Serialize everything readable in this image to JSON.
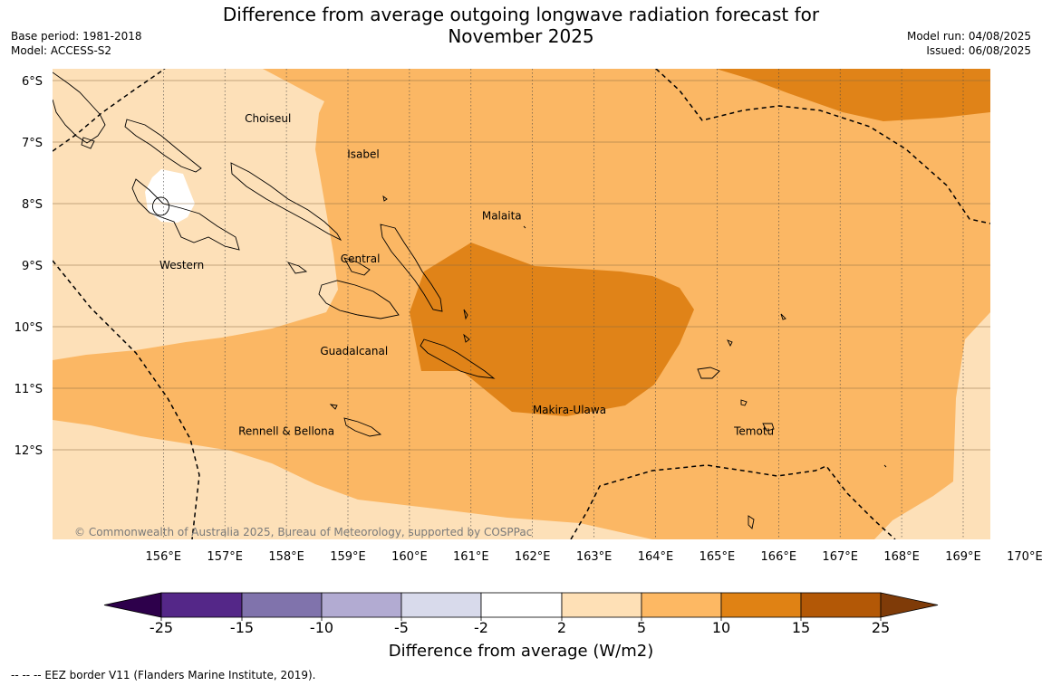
{
  "header": {
    "title_line1": "Difference from average outgoing longwave radiation forecast for",
    "title_line2": "November 2025",
    "base_period": "Base period: 1981-2018",
    "model": "Model: ACCESS-S2",
    "model_run": "Model run: 04/08/2025",
    "issued": "Issued: 06/08/2025"
  },
  "map": {
    "copyright": "© Commonwealth of Australia 2025, Bureau of Meteorology, supported by COSPPac",
    "lat_labels": [
      "6°S",
      "7°S",
      "8°S",
      "9°S",
      "10°S",
      "11°S",
      "12°S"
    ],
    "lon_labels": [
      "156°E",
      "157°E",
      "158°E",
      "159°E",
      "160°E",
      "161°E",
      "162°E",
      "163°E",
      "164°E",
      "165°E",
      "166°E",
      "167°E",
      "168°E",
      "169°E",
      "170°E"
    ],
    "places": [
      {
        "name": "Choiseul",
        "lon": 157.7,
        "lat": -6.62
      },
      {
        "name": "Isabel",
        "lon": 159.25,
        "lat": -7.2
      },
      {
        "name": "Malaita",
        "lon": 161.5,
        "lat": -8.2
      },
      {
        "name": "Western",
        "lon": 156.3,
        "lat": -9.0
      },
      {
        "name": "Central",
        "lon": 159.2,
        "lat": -8.9
      },
      {
        "name": "Guadalcanal",
        "lon": 159.1,
        "lat": -10.4
      },
      {
        "name": "Makira-Ulawa",
        "lon": 162.6,
        "lat": -11.35
      },
      {
        "name": "Rennell & Bellona",
        "lon": 158.0,
        "lat": -11.7
      },
      {
        "name": "Temotu",
        "lon": 165.6,
        "lat": -11.7
      }
    ],
    "colors": {
      "c2_5": "#fde0b8",
      "c5_10": "#fbb764",
      "c10_15": "#e08318",
      "c15_25": "#b35806",
      "cneg2_2": "#ffffff"
    }
  },
  "colorbar": {
    "ticks": [
      "-25",
      "-15",
      "-10",
      "-5",
      "-2",
      "2",
      "5",
      "10",
      "15",
      "25"
    ],
    "colors": [
      "#542788",
      "#8073ac",
      "#b2abd2",
      "#d8daeb",
      "#ffffff",
      "#fee0b6",
      "#fdb863",
      "#e08214",
      "#b35806"
    ],
    "extend_low": "#2d004b",
    "extend_high": "#7f3b08",
    "title": "Difference from average (W/m2)"
  },
  "footer": {
    "eez_note": "--  --  -- EEZ border V11 (Flanders Marine Institute, 2019)."
  }
}
